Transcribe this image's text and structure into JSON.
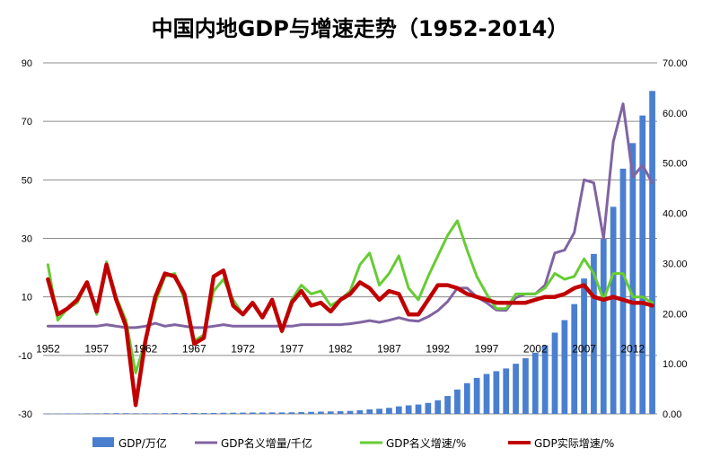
{
  "chart_data": {
    "type": "bar+line",
    "title": "中国内地GDP与增速走势（1952-2014）",
    "years": [
      1952,
      1953,
      1954,
      1955,
      1956,
      1957,
      1958,
      1959,
      1960,
      1961,
      1962,
      1963,
      1964,
      1965,
      1966,
      1967,
      1968,
      1969,
      1970,
      1971,
      1972,
      1973,
      1974,
      1975,
      1976,
      1977,
      1978,
      1979,
      1980,
      1981,
      1982,
      1983,
      1984,
      1985,
      1986,
      1987,
      1988,
      1989,
      1990,
      1991,
      1992,
      1993,
      1994,
      1995,
      1996,
      1997,
      1998,
      1999,
      2000,
      2001,
      2002,
      2003,
      2004,
      2005,
      2006,
      2007,
      2008,
      2009,
      2010,
      2011,
      2012,
      2013,
      2014
    ],
    "x_tick_labels": [
      "1952",
      "1957",
      "1962",
      "1967",
      "1972",
      "1977",
      "1982",
      "1987",
      "1992",
      "1997",
      "2002",
      "2007",
      "2012"
    ],
    "left_axis": {
      "min": -30,
      "max": 90,
      "ticks": [
        "90",
        "70",
        "50",
        "30",
        "10",
        "-10",
        "-30"
      ]
    },
    "right_axis": {
      "min": 0,
      "max": 70,
      "ticks": [
        "70.00",
        "60.00",
        "50.00",
        "40.00",
        "30.00",
        "20.00",
        "10.00",
        "0.00"
      ]
    },
    "series": [
      {
        "name": "GDP/万亿",
        "type": "bar",
        "axis": "right",
        "color": "#4a7fd0",
        "values": [
          0.068,
          0.082,
          0.086,
          0.091,
          0.103,
          0.107,
          0.131,
          0.144,
          0.146,
          0.122,
          0.115,
          0.123,
          0.145,
          0.172,
          0.187,
          0.178,
          0.172,
          0.194,
          0.225,
          0.243,
          0.252,
          0.272,
          0.279,
          0.3,
          0.294,
          0.32,
          0.368,
          0.406,
          0.455,
          0.489,
          0.532,
          0.596,
          0.721,
          0.902,
          1.03,
          1.21,
          1.5,
          1.7,
          1.87,
          2.19,
          2.72,
          3.57,
          4.86,
          6.13,
          7.18,
          7.97,
          8.52,
          9.06,
          10.0,
          11.1,
          12.2,
          13.7,
          16.2,
          18.7,
          21.9,
          27.0,
          31.9,
          34.9,
          41.3,
          48.9,
          54.0,
          59.5,
          64.4
        ]
      },
      {
        "name": "GDP名义增量/千亿",
        "type": "line",
        "axis": "left",
        "color": "#8064a2",
        "values": [
          0,
          0,
          0,
          0,
          0,
          0,
          0.5,
          0,
          -0.5,
          -0.5,
          0,
          1,
          0,
          0.5,
          0,
          -0.5,
          -0.5,
          0,
          0.5,
          0,
          0,
          0,
          0,
          0,
          0,
          0,
          0.5,
          0.5,
          0.5,
          0.5,
          0.5,
          0.8,
          1.3,
          1.9,
          1.3,
          2.0,
          2.9,
          2.0,
          1.7,
          3.2,
          5.3,
          8.4,
          13,
          13,
          10,
          8,
          5.5,
          5.4,
          9.7,
          11,
          11,
          14,
          25,
          26,
          32,
          50,
          49,
          30,
          63,
          76,
          51,
          55,
          49
        ]
      },
      {
        "name": "GDP名义增速/%",
        "type": "line",
        "axis": "left",
        "color": "#66cc33",
        "values": [
          21,
          2,
          6,
          8,
          15,
          4,
          22,
          10,
          2,
          -16,
          -5,
          8,
          17,
          18,
          9,
          -5,
          -3,
          12,
          16,
          9,
          4,
          8,
          3,
          8,
          -2,
          9,
          14,
          11,
          12,
          7,
          9,
          12,
          21,
          25,
          14,
          18,
          24,
          13,
          9,
          17,
          24,
          31,
          36,
          26,
          17,
          11,
          6,
          6,
          11,
          11,
          11,
          13,
          18,
          16,
          17,
          23,
          18,
          9,
          18,
          18,
          10,
          10,
          8
        ]
      },
      {
        "name": "GDP实际增速/%",
        "type": "line",
        "axis": "left",
        "color": "#c00000",
        "values": [
          16,
          4,
          6,
          9,
          15,
          5,
          21,
          9,
          0,
          -27,
          -5,
          10,
          18,
          17,
          11,
          -6,
          -4,
          17,
          19,
          7,
          4,
          8,
          3,
          9,
          -1.6,
          8,
          12,
          7,
          8,
          5,
          9,
          11,
          15,
          13,
          9,
          12,
          11,
          4,
          4,
          9,
          14,
          14,
          13,
          11,
          10,
          9,
          8,
          8,
          8,
          8,
          9,
          10,
          10,
          11,
          13,
          14,
          10,
          9,
          10,
          9,
          8,
          8,
          7
        ]
      }
    ]
  }
}
